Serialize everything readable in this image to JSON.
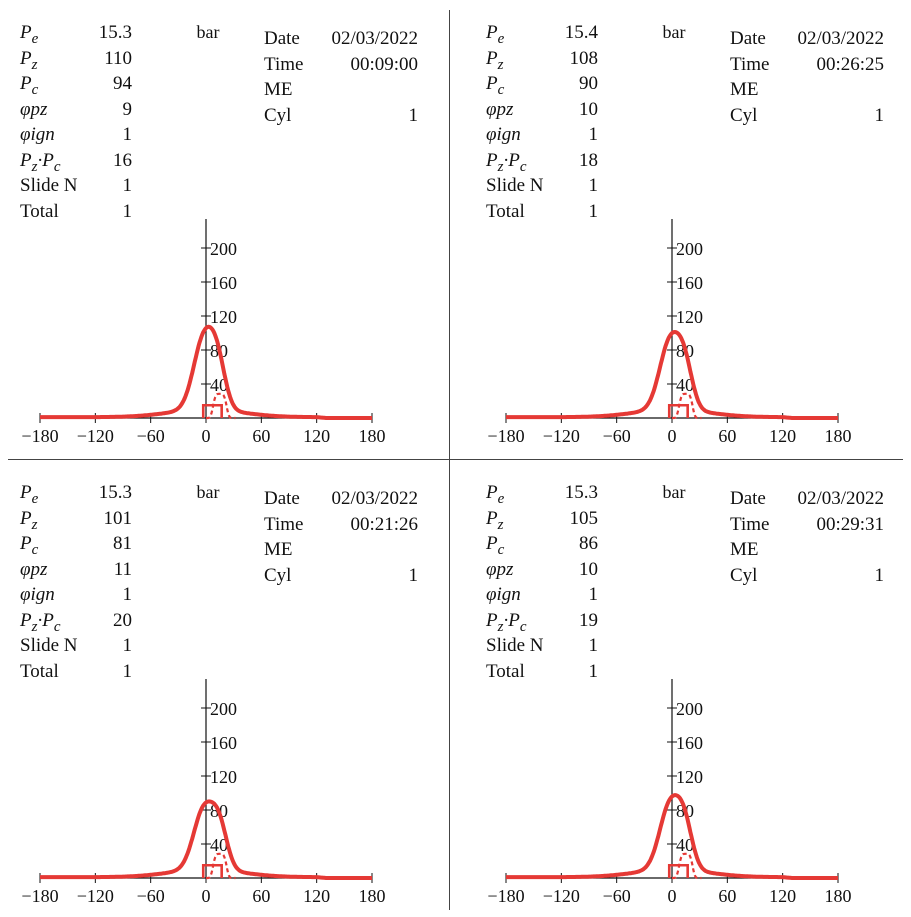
{
  "chart_data": [
    {
      "type": "line",
      "ylabel": "bar",
      "xlim": [
        -180,
        180
      ],
      "ylim": [
        0,
        220
      ],
      "x_ticks": [
        -180,
        -120,
        -60,
        0,
        60,
        120,
        180
      ],
      "y_ticks": [
        40,
        80,
        120,
        160,
        200
      ],
      "series_colors": [
        "#e53935"
      ],
      "params": [
        {
          "label": "P",
          "sub": "e",
          "value": "15.3"
        },
        {
          "label": "P",
          "sub": "z",
          "value": "110"
        },
        {
          "label": "P",
          "sub": "c",
          "value": "94"
        },
        {
          "label": "φpz",
          "value": "9"
        },
        {
          "label": "φign",
          "value": "1"
        },
        {
          "label": "P",
          "sub": "z",
          "mid": "·P",
          "sub2": "c",
          "value": "16"
        },
        {
          "label": "Slide N",
          "value": "1"
        },
        {
          "label": "Total",
          "value": "1"
        }
      ],
      "info": [
        {
          "label": "Date",
          "value": "02/03/2022"
        },
        {
          "label": "Time",
          "value": "00:09:00"
        },
        {
          "label": "ME",
          "value": ""
        },
        {
          "label": "Cyl",
          "value": "1"
        }
      ],
      "pz": 110,
      "pc": 94,
      "phi_pz": 9
    },
    {
      "type": "line",
      "ylabel": "bar",
      "xlim": [
        -180,
        180
      ],
      "ylim": [
        0,
        220
      ],
      "x_ticks": [
        -180,
        -120,
        -60,
        0,
        60,
        120,
        180
      ],
      "y_ticks": [
        40,
        80,
        120,
        160,
        200
      ],
      "series_colors": [
        "#e53935"
      ],
      "params": [
        {
          "label": "P",
          "sub": "e",
          "value": "15.4"
        },
        {
          "label": "P",
          "sub": "z",
          "value": "108"
        },
        {
          "label": "P",
          "sub": "c",
          "value": "90"
        },
        {
          "label": "φpz",
          "value": "10"
        },
        {
          "label": "φign",
          "value": "1"
        },
        {
          "label": "P",
          "sub": "z",
          "mid": "·P",
          "sub2": "c",
          "value": "18"
        },
        {
          "label": "Slide N",
          "value": "1"
        },
        {
          "label": "Total",
          "value": "1"
        }
      ],
      "info": [
        {
          "label": "Date",
          "value": "02/03/2022"
        },
        {
          "label": "Time",
          "value": "00:26:25"
        },
        {
          "label": "ME",
          "value": ""
        },
        {
          "label": "Cyl",
          "value": "1"
        }
      ],
      "pz": 108,
      "pc": 90,
      "phi_pz": 10
    },
    {
      "type": "line",
      "ylabel": "bar",
      "xlim": [
        -180,
        180
      ],
      "ylim": [
        0,
        220
      ],
      "x_ticks": [
        -180,
        -120,
        -60,
        0,
        60,
        120,
        180
      ],
      "y_ticks": [
        40,
        80,
        120,
        160,
        200
      ],
      "series_colors": [
        "#e53935"
      ],
      "params": [
        {
          "label": "P",
          "sub": "e",
          "value": "15.3"
        },
        {
          "label": "P",
          "sub": "z",
          "value": "101"
        },
        {
          "label": "P",
          "sub": "c",
          "value": "81"
        },
        {
          "label": "φpz",
          "value": "11"
        },
        {
          "label": "φign",
          "value": "1"
        },
        {
          "label": "P",
          "sub": "z",
          "mid": "·P",
          "sub2": "c",
          "value": "20"
        },
        {
          "label": "Slide N",
          "value": "1"
        },
        {
          "label": "Total",
          "value": "1"
        }
      ],
      "info": [
        {
          "label": "Date",
          "value": "02/03/2022"
        },
        {
          "label": "Time",
          "value": "00:21:26"
        },
        {
          "label": "ME",
          "value": ""
        },
        {
          "label": "Cyl",
          "value": "1"
        }
      ],
      "pz": 101,
      "pc": 81,
      "phi_pz": 11
    },
    {
      "type": "line",
      "ylabel": "bar",
      "xlim": [
        -180,
        180
      ],
      "ylim": [
        0,
        220
      ],
      "x_ticks": [
        -180,
        -120,
        -60,
        0,
        60,
        120,
        180
      ],
      "y_ticks": [
        40,
        80,
        120,
        160,
        200
      ],
      "series_colors": [
        "#e53935"
      ],
      "params": [
        {
          "label": "P",
          "sub": "e",
          "value": "15.3"
        },
        {
          "label": "P",
          "sub": "z",
          "value": "105"
        },
        {
          "label": "P",
          "sub": "c",
          "value": "86"
        },
        {
          "label": "φpz",
          "value": "10"
        },
        {
          "label": "φign",
          "value": "1"
        },
        {
          "label": "P",
          "sub": "z",
          "mid": "·P",
          "sub2": "c",
          "value": "19"
        },
        {
          "label": "Slide N",
          "value": "1"
        },
        {
          "label": "Total",
          "value": "1"
        }
      ],
      "info": [
        {
          "label": "Date",
          "value": "02/03/2022"
        },
        {
          "label": "Time",
          "value": "00:29:31"
        },
        {
          "label": "ME",
          "value": ""
        },
        {
          "label": "Cyl",
          "value": "1"
        }
      ],
      "pz": 105,
      "pc": 86,
      "phi_pz": 10
    }
  ]
}
